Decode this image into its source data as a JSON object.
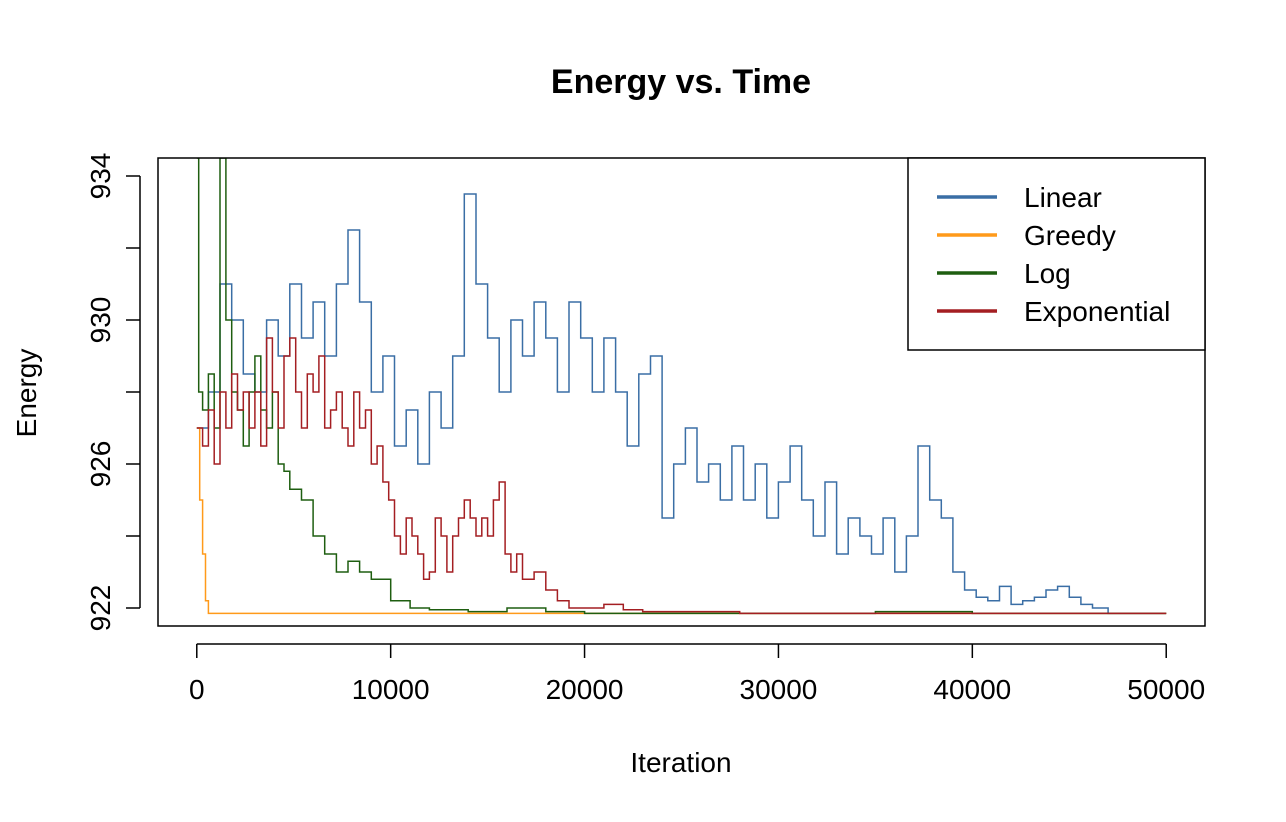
{
  "chart_data": {
    "type": "line",
    "title": "Energy vs. Time",
    "xlabel": "Iteration",
    "ylabel": "Energy",
    "xlim": [
      -2000,
      52000
    ],
    "ylim": [
      921.5,
      934.5
    ],
    "xticks": [
      0,
      10000,
      20000,
      30000,
      40000,
      50000
    ],
    "yticks": [
      922,
      926,
      930,
      934
    ],
    "ytick_minor": [
      924,
      928,
      932
    ],
    "legend_position": "top-right",
    "grid": false,
    "series": [
      {
        "name": "Linear",
        "color": "#3A6EA5",
        "points": [
          [
            0,
            927
          ],
          [
            600,
            928
          ],
          [
            1200,
            931
          ],
          [
            1800,
            930
          ],
          [
            2400,
            928.5
          ],
          [
            3000,
            928
          ],
          [
            3600,
            930
          ],
          [
            4200,
            929
          ],
          [
            4800,
            931
          ],
          [
            5400,
            929.5
          ],
          [
            6000,
            930.5
          ],
          [
            6600,
            929
          ],
          [
            7200,
            931
          ],
          [
            7800,
            932.5
          ],
          [
            8400,
            930.5
          ],
          [
            9000,
            928
          ],
          [
            9600,
            929
          ],
          [
            10200,
            926.5
          ],
          [
            10800,
            927.5
          ],
          [
            11400,
            926
          ],
          [
            12000,
            928
          ],
          [
            12600,
            927
          ],
          [
            13200,
            929
          ],
          [
            13800,
            933.5
          ],
          [
            14400,
            931
          ],
          [
            15000,
            929.5
          ],
          [
            15600,
            928
          ],
          [
            16200,
            930
          ],
          [
            16800,
            929
          ],
          [
            17400,
            930.5
          ],
          [
            18000,
            929.5
          ],
          [
            18600,
            928
          ],
          [
            19200,
            930.5
          ],
          [
            19800,
            929.5
          ],
          [
            20400,
            928
          ],
          [
            21000,
            929.5
          ],
          [
            21600,
            928
          ],
          [
            22200,
            926.5
          ],
          [
            22800,
            928.5
          ],
          [
            23400,
            929
          ],
          [
            24000,
            924.5
          ],
          [
            24600,
            926
          ],
          [
            25200,
            927
          ],
          [
            25800,
            925.5
          ],
          [
            26400,
            926
          ],
          [
            27000,
            925
          ],
          [
            27600,
            926.5
          ],
          [
            28200,
            925
          ],
          [
            28800,
            926
          ],
          [
            29400,
            924.5
          ],
          [
            30000,
            925.5
          ],
          [
            30600,
            926.5
          ],
          [
            31200,
            925
          ],
          [
            31800,
            924
          ],
          [
            32400,
            925.5
          ],
          [
            33000,
            923.5
          ],
          [
            33600,
            924.5
          ],
          [
            34200,
            924
          ],
          [
            34800,
            923.5
          ],
          [
            35400,
            924.5
          ],
          [
            36000,
            923
          ],
          [
            36600,
            924
          ],
          [
            37200,
            926.5
          ],
          [
            37800,
            925
          ],
          [
            38400,
            924.5
          ],
          [
            39000,
            923
          ],
          [
            39600,
            922.5
          ],
          [
            40200,
            922.3
          ],
          [
            40800,
            922.2
          ],
          [
            41400,
            922.6
          ],
          [
            42000,
            922.1
          ],
          [
            42600,
            922.2
          ],
          [
            43200,
            922.3
          ],
          [
            43800,
            922.5
          ],
          [
            44400,
            922.6
          ],
          [
            45000,
            922.3
          ],
          [
            45600,
            922.1
          ],
          [
            46200,
            922
          ],
          [
            47000,
            921.85
          ],
          [
            48500,
            921.85
          ],
          [
            50000,
            921.85
          ]
        ]
      },
      {
        "name": "Greedy",
        "color": "#FF9A1A",
        "points": [
          [
            0,
            927
          ],
          [
            150,
            925
          ],
          [
            300,
            923.5
          ],
          [
            450,
            922.2
          ],
          [
            600,
            921.85
          ],
          [
            10000,
            921.85
          ],
          [
            20000,
            921.85
          ],
          [
            30000,
            921.85
          ],
          [
            40000,
            921.85
          ],
          [
            50000,
            921.85
          ]
        ]
      },
      {
        "name": "Log",
        "color": "#1E5E10",
        "points": [
          [
            0,
            934.5
          ],
          [
            100,
            928
          ],
          [
            300,
            927.5
          ],
          [
            600,
            928.5
          ],
          [
            900,
            927
          ],
          [
            1200,
            934.5
          ],
          [
            1500,
            930
          ],
          [
            1800,
            928
          ],
          [
            2100,
            927.5
          ],
          [
            2400,
            926.5
          ],
          [
            2700,
            928
          ],
          [
            3000,
            929
          ],
          [
            3300,
            927.5
          ],
          [
            3600,
            927
          ],
          [
            3900,
            928
          ],
          [
            4200,
            926
          ],
          [
            4500,
            925.8
          ],
          [
            4800,
            925.3
          ],
          [
            5400,
            925
          ],
          [
            6000,
            924
          ],
          [
            6600,
            923.5
          ],
          [
            7200,
            923
          ],
          [
            7800,
            923.3
          ],
          [
            8400,
            923
          ],
          [
            9000,
            922.8
          ],
          [
            9600,
            922.8
          ],
          [
            10000,
            922.2
          ],
          [
            11000,
            922
          ],
          [
            12000,
            921.95
          ],
          [
            14000,
            921.9
          ],
          [
            16000,
            922
          ],
          [
            18000,
            921.9
          ],
          [
            20000,
            921.85
          ],
          [
            25000,
            921.85
          ],
          [
            30000,
            921.85
          ],
          [
            35000,
            921.9
          ],
          [
            40000,
            921.85
          ],
          [
            45000,
            921.85
          ],
          [
            50000,
            921.85
          ]
        ]
      },
      {
        "name": "Exponential",
        "color": "#A41E22",
        "points": [
          [
            0,
            927
          ],
          [
            300,
            926.5
          ],
          [
            600,
            927.5
          ],
          [
            900,
            926
          ],
          [
            1200,
            928
          ],
          [
            1500,
            927
          ],
          [
            1800,
            928.5
          ],
          [
            2100,
            927.5
          ],
          [
            2400,
            928
          ],
          [
            2700,
            927
          ],
          [
            3000,
            928
          ],
          [
            3300,
            926.5
          ],
          [
            3600,
            929.5
          ],
          [
            3900,
            928
          ],
          [
            4200,
            927
          ],
          [
            4500,
            929
          ],
          [
            4800,
            929.5
          ],
          [
            5100,
            928
          ],
          [
            5400,
            927
          ],
          [
            5700,
            928.5
          ],
          [
            6000,
            928
          ],
          [
            6300,
            929
          ],
          [
            6600,
            927
          ],
          [
            6900,
            927.5
          ],
          [
            7200,
            928
          ],
          [
            7500,
            927
          ],
          [
            7800,
            926.5
          ],
          [
            8100,
            928
          ],
          [
            8400,
            927
          ],
          [
            8700,
            927.5
          ],
          [
            9000,
            926
          ],
          [
            9300,
            926.5
          ],
          [
            9600,
            925.5
          ],
          [
            9900,
            925
          ],
          [
            10200,
            924
          ],
          [
            10500,
            923.5
          ],
          [
            10800,
            924.5
          ],
          [
            11100,
            924
          ],
          [
            11400,
            923.5
          ],
          [
            11700,
            922.8
          ],
          [
            12000,
            923
          ],
          [
            12300,
            924.5
          ],
          [
            12600,
            924
          ],
          [
            12900,
            923
          ],
          [
            13200,
            924
          ],
          [
            13500,
            924.5
          ],
          [
            13800,
            925
          ],
          [
            14100,
            924.5
          ],
          [
            14400,
            924
          ],
          [
            14700,
            924.5
          ],
          [
            15000,
            924
          ],
          [
            15300,
            925
          ],
          [
            15600,
            925.5
          ],
          [
            15900,
            923.5
          ],
          [
            16200,
            923
          ],
          [
            16500,
            923.5
          ],
          [
            16800,
            922.8
          ],
          [
            17400,
            923
          ],
          [
            18000,
            922.5
          ],
          [
            18600,
            922.2
          ],
          [
            19200,
            922
          ],
          [
            20000,
            922
          ],
          [
            21000,
            922.1
          ],
          [
            22000,
            921.95
          ],
          [
            23000,
            921.9
          ],
          [
            25000,
            921.9
          ],
          [
            28000,
            921.85
          ],
          [
            30000,
            921.85
          ],
          [
            35000,
            921.85
          ],
          [
            40000,
            921.85
          ],
          [
            45000,
            921.85
          ],
          [
            50000,
            921.85
          ]
        ]
      }
    ]
  }
}
